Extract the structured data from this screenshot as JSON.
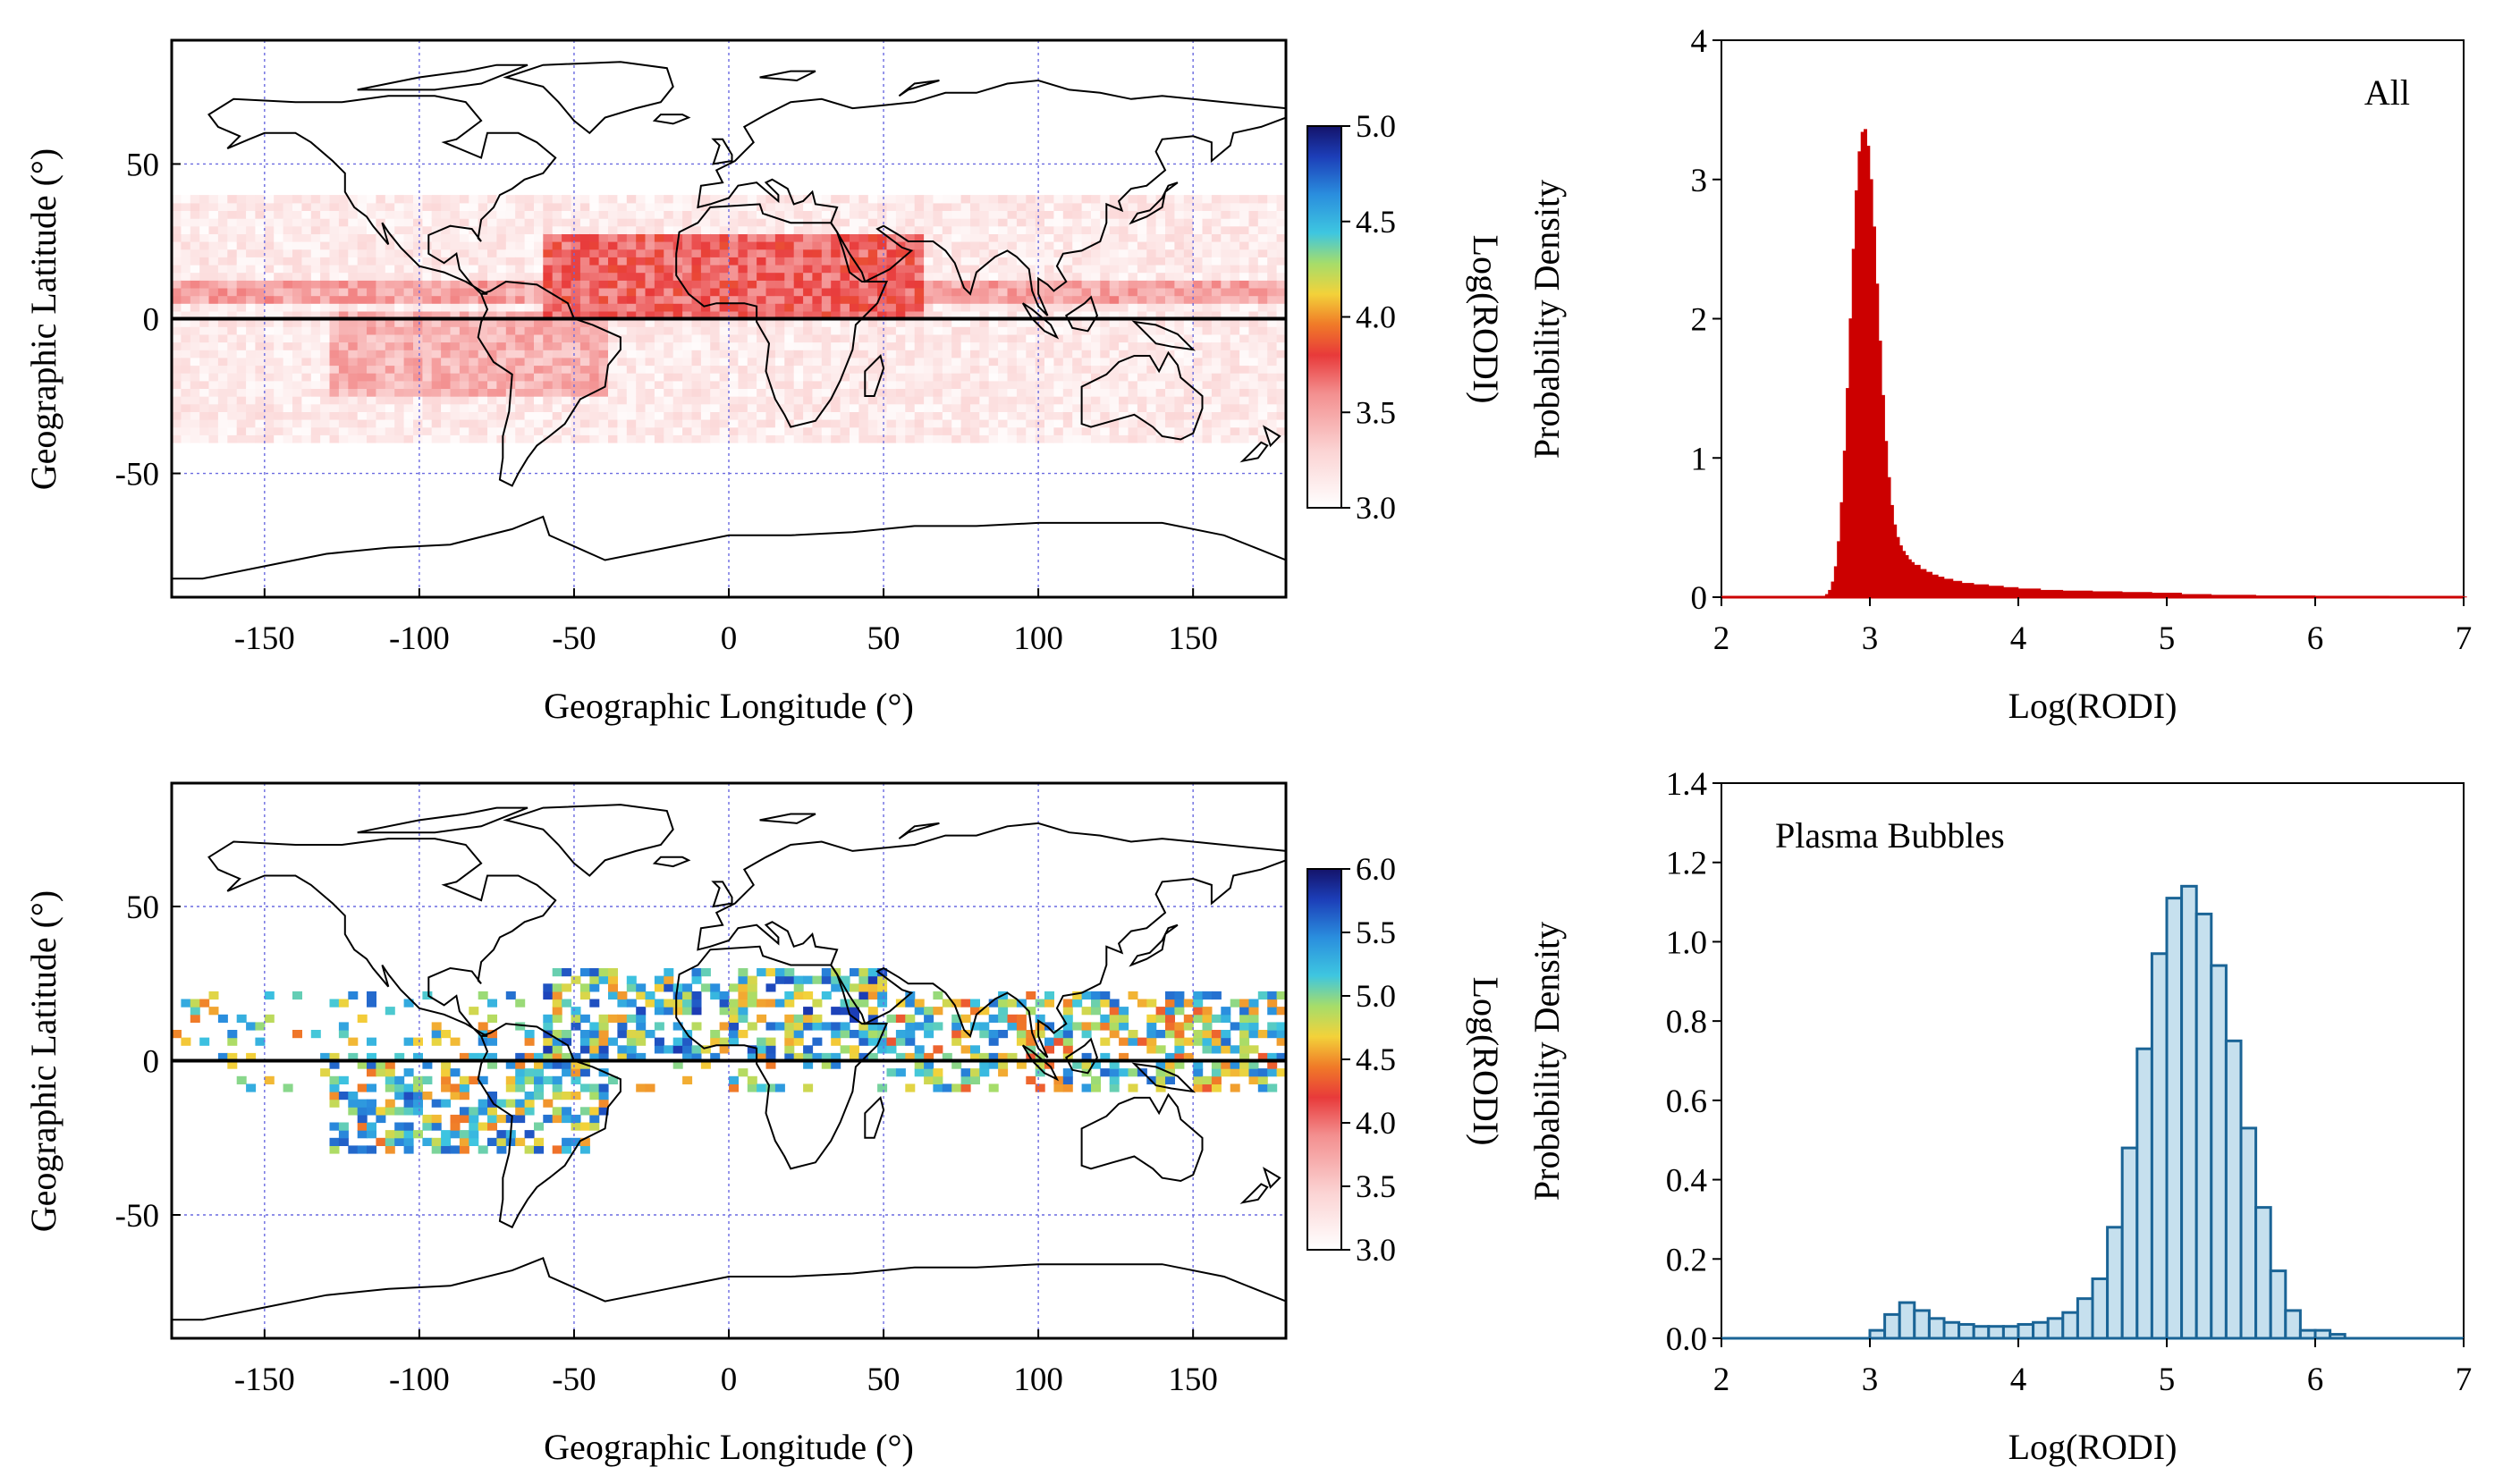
{
  "chart_data": [
    {
      "type": "heatmap",
      "panel": "top-left",
      "title": "",
      "xlabel": "Geographic Longitude (°)",
      "ylabel": "Geographic Latitude (°)",
      "xlim": [
        -180,
        180
      ],
      "ylim": [
        -90,
        90
      ],
      "xticks": [
        -150,
        -100,
        -50,
        0,
        50,
        100,
        150
      ],
      "xtick_labels": [
        "-150",
        "-100",
        "-50",
        "0",
        "50",
        "100",
        "150"
      ],
      "yticks": [
        -50,
        0,
        50
      ],
      "ytick_labels": [
        "-50",
        "0",
        "50"
      ],
      "grid": true,
      "data_lat_range": [
        -40,
        40
      ],
      "colorbar": {
        "label": "Log(RODI)",
        "range": [
          3.0,
          5.0
        ],
        "ticks": [
          3.0,
          3.5,
          4.0,
          4.5,
          5.0
        ],
        "tick_labels": [
          "3.0",
          "3.5",
          "4.0",
          "4.5",
          "5.0"
        ]
      },
      "description_bands": [
        {
          "lon": [
            -180,
            180
          ],
          "lat": [
            5,
            12
          ],
          "value": 3.5
        },
        {
          "lon": [
            -130,
            -40
          ],
          "lat": [
            -25,
            0
          ],
          "value": 3.45
        },
        {
          "lon": [
            -60,
            60
          ],
          "lat": [
            0,
            25
          ],
          "value": 3.7
        }
      ]
    },
    {
      "type": "heatmap",
      "panel": "bottom-left",
      "title": "",
      "xlabel": "Geographic Longitude (°)",
      "ylabel": "Geographic Latitude (°)",
      "xlim": [
        -180,
        180
      ],
      "ylim": [
        -90,
        90
      ],
      "xticks": [
        -150,
        -100,
        -50,
        0,
        50,
        100,
        150
      ],
      "xtick_labels": [
        "-150",
        "-100",
        "-50",
        "0",
        "50",
        "100",
        "150"
      ],
      "yticks": [
        -50,
        0,
        50
      ],
      "ytick_labels": [
        "-50",
        "0",
        "50"
      ],
      "grid": true,
      "colorbar": {
        "label": "Log(RODI)",
        "range": [
          3.0,
          6.0
        ],
        "ticks": [
          3.0,
          3.5,
          4.0,
          4.5,
          5.0,
          5.5,
          6.0
        ],
        "tick_labels": [
          "3.0",
          "3.5",
          "4.0",
          "4.5",
          "5.0",
          "5.5",
          "6.0"
        ]
      },
      "description_bands": [
        {
          "lon": [
            -130,
            -40
          ],
          "lat": [
            -30,
            0
          ],
          "value": 5.1
        },
        {
          "lon": [
            -60,
            50
          ],
          "lat": [
            0,
            28
          ],
          "value": 5.2
        },
        {
          "lon": [
            50,
            180
          ],
          "lat": [
            -10,
            22
          ],
          "value": 5.0
        }
      ]
    },
    {
      "type": "bar",
      "panel": "top-right",
      "annotation": "All",
      "xlabel": "Log(RODI)",
      "ylabel": "Probability Density",
      "xlim": [
        2,
        7
      ],
      "ylim": [
        0,
        4
      ],
      "xticks": [
        2,
        3,
        4,
        5,
        6,
        7
      ],
      "xtick_labels": [
        "2",
        "3",
        "4",
        "5",
        "6",
        "7"
      ],
      "yticks": [
        0,
        1,
        2,
        3,
        4
      ],
      "ytick_labels": [
        "0",
        "1",
        "2",
        "3",
        "4"
      ],
      "color": "#cc0000",
      "bin_width": 0.02,
      "x": [
        2.7,
        2.72,
        2.74,
        2.76,
        2.78,
        2.8,
        2.82,
        2.84,
        2.86,
        2.88,
        2.9,
        2.92,
        2.94,
        2.96,
        2.98,
        3.0,
        3.02,
        3.04,
        3.06,
        3.08,
        3.1,
        3.12,
        3.14,
        3.16,
        3.18,
        3.2,
        3.22,
        3.24,
        3.26,
        3.28,
        3.3,
        3.34,
        3.38,
        3.42,
        3.46,
        3.5,
        3.56,
        3.62,
        3.7,
        3.8,
        3.9,
        4.0,
        4.15,
        4.3,
        4.5,
        4.7,
        4.9,
        5.1,
        5.3,
        5.6,
        6.0,
        6.5,
        7.0
      ],
      "values": [
        0.02,
        0.05,
        0.11,
        0.22,
        0.4,
        0.68,
        1.05,
        1.5,
        2.0,
        2.5,
        2.92,
        3.2,
        3.34,
        3.36,
        3.24,
        3.0,
        2.66,
        2.25,
        1.84,
        1.45,
        1.12,
        0.86,
        0.66,
        0.52,
        0.43,
        0.37,
        0.33,
        0.3,
        0.27,
        0.25,
        0.23,
        0.2,
        0.18,
        0.16,
        0.145,
        0.13,
        0.115,
        0.1,
        0.09,
        0.08,
        0.07,
        0.06,
        0.05,
        0.045,
        0.04,
        0.035,
        0.03,
        0.02,
        0.015,
        0.01,
        0.008,
        0.005,
        0.003
      ]
    },
    {
      "type": "bar",
      "panel": "bottom-right",
      "annotation": "Plasma Bubbles",
      "xlabel": "Log(RODI)",
      "ylabel": "Probability Density",
      "xlim": [
        2,
        7
      ],
      "ylim": [
        0,
        1.4
      ],
      "xticks": [
        2,
        3,
        4,
        5,
        6,
        7
      ],
      "xtick_labels": [
        "2",
        "3",
        "4",
        "5",
        "6",
        "7"
      ],
      "yticks": [
        0.0,
        0.2,
        0.4,
        0.6,
        0.8,
        1.0,
        1.2,
        1.4
      ],
      "ytick_labels": [
        "0.0",
        "0.2",
        "0.4",
        "0.6",
        "0.8",
        "1.0",
        "1.2",
        "1.4"
      ],
      "fill_color": "#c6e0ee",
      "edge_color": "#1a6496",
      "bin_width": 0.1,
      "x": [
        3.0,
        3.1,
        3.2,
        3.3,
        3.4,
        3.5,
        3.6,
        3.7,
        3.8,
        3.9,
        4.0,
        4.1,
        4.2,
        4.3,
        4.4,
        4.5,
        4.6,
        4.7,
        4.8,
        4.9,
        5.0,
        5.1,
        5.2,
        5.3,
        5.4,
        5.5,
        5.6,
        5.7,
        5.8,
        5.9,
        6.0,
        6.1
      ],
      "values": [
        0.02,
        0.06,
        0.09,
        0.07,
        0.05,
        0.04,
        0.035,
        0.03,
        0.03,
        0.03,
        0.035,
        0.04,
        0.05,
        0.065,
        0.1,
        0.15,
        0.28,
        0.48,
        0.73,
        0.97,
        1.11,
        1.14,
        1.07,
        0.94,
        0.75,
        0.53,
        0.33,
        0.17,
        0.07,
        0.02,
        0.02,
        0.01
      ]
    }
  ]
}
